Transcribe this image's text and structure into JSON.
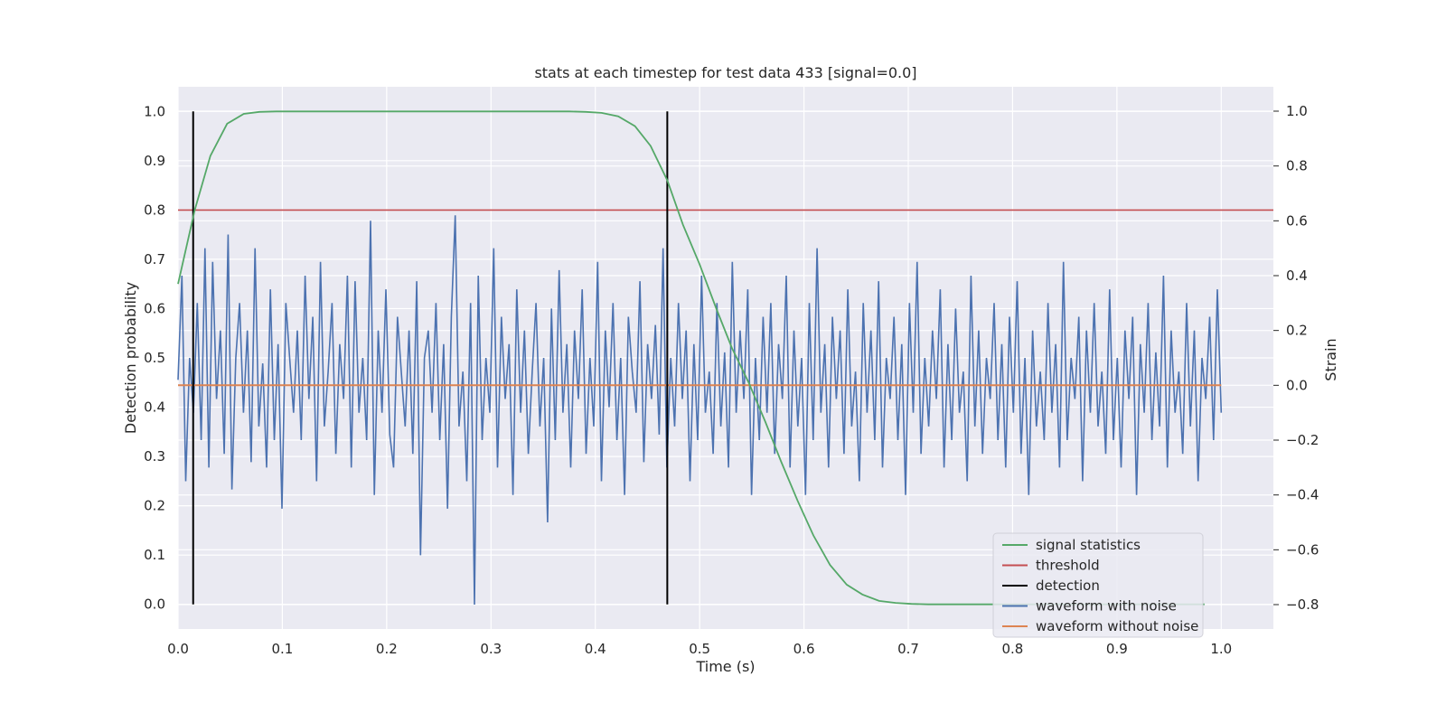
{
  "chart_data": {
    "type": "line",
    "title": "stats at each timestep for test data 433 [signal=0.0]",
    "xlabel": "Time (s)",
    "ylabel": "Detection probability",
    "y2label": "Strain",
    "xlim": [
      0.0,
      1.05
    ],
    "ylim": [
      -0.05,
      1.05
    ],
    "y2lim": [
      -0.889,
      1.089
    ],
    "x_ticks": [
      "0.0",
      "0.1",
      "0.2",
      "0.3",
      "0.4",
      "0.5",
      "0.6",
      "0.7",
      "0.8",
      "0.9",
      "1.0"
    ],
    "y_ticks": [
      "0.0",
      "0.1",
      "0.2",
      "0.3",
      "0.4",
      "0.5",
      "0.6",
      "0.7",
      "0.8",
      "0.9",
      "1.0"
    ],
    "y2_ticks": [
      "−0.8",
      "−0.6",
      "−0.4",
      "−0.2",
      "0.0",
      "0.2",
      "0.4",
      "0.6",
      "0.8",
      "1.0"
    ],
    "grid": true,
    "legend_position": "bottom-right",
    "series": [
      {
        "name": "signal statistics",
        "color": "#55a868",
        "axis": "left",
        "x": [
          0.0,
          0.016,
          0.031,
          0.047,
          0.063,
          0.078,
          0.094,
          0.109,
          0.125,
          0.141,
          0.156,
          0.172,
          0.188,
          0.203,
          0.219,
          0.234,
          0.25,
          0.266,
          0.281,
          0.297,
          0.313,
          0.328,
          0.344,
          0.359,
          0.375,
          0.391,
          0.406,
          0.422,
          0.438,
          0.453,
          0.469,
          0.484,
          0.5,
          0.516,
          0.531,
          0.547,
          0.563,
          0.578,
          0.594,
          0.609,
          0.625,
          0.641,
          0.656,
          0.672,
          0.688,
          0.703,
          0.719,
          0.734,
          0.75,
          0.766,
          0.781,
          0.797,
          0.813,
          0.828,
          0.844,
          0.859,
          0.875,
          0.891,
          0.906,
          0.922,
          0.938,
          0.953,
          0.969,
          0.984
        ],
        "values": [
          0.65,
          0.8,
          0.91,
          0.975,
          0.995,
          0.999,
          1.0,
          1.0,
          1.0,
          1.0,
          1.0,
          1.0,
          1.0,
          1.0,
          1.0,
          1.0,
          1.0,
          1.0,
          1.0,
          1.0,
          1.0,
          1.0,
          1.0,
          1.0,
          1.0,
          0.999,
          0.997,
          0.99,
          0.97,
          0.93,
          0.86,
          0.77,
          0.69,
          0.6,
          0.52,
          0.45,
          0.37,
          0.29,
          0.21,
          0.14,
          0.08,
          0.04,
          0.02,
          0.007,
          0.003,
          0.001,
          0.0,
          0.0,
          0.0,
          0.0,
          0.0,
          0.0,
          0.0,
          0.0,
          0.0,
          0.0,
          0.0,
          0.0,
          0.0,
          0.0,
          0.0,
          0.0,
          0.0,
          0.0
        ]
      },
      {
        "name": "threshold",
        "color": "#c44e52",
        "axis": "left",
        "x": [
          0.0,
          1.05
        ],
        "values": [
          0.8,
          0.8
        ]
      },
      {
        "name": "detection",
        "color": "#000000",
        "axis": "left",
        "type": "vlines",
        "x": [
          0.0145,
          0.469
        ],
        "ymin": 0.0,
        "ymax": 1.0
      },
      {
        "name": "waveform with noise",
        "color": "#4c72b0",
        "axis": "right",
        "x_start": 0.0,
        "x_end": 1.0,
        "values": [
          0.02,
          0.4,
          -0.35,
          0.1,
          -0.1,
          0.3,
          -0.2,
          0.5,
          -0.3,
          0.45,
          -0.05,
          0.2,
          -0.25,
          0.55,
          -0.38,
          0.1,
          0.3,
          -0.1,
          0.2,
          -0.28,
          0.5,
          -0.15,
          0.08,
          -0.3,
          0.35,
          -0.2,
          0.15,
          -0.45,
          0.3,
          0.1,
          -0.1,
          0.2,
          -0.2,
          0.4,
          -0.05,
          0.25,
          -0.35,
          0.45,
          -0.15,
          0.05,
          0.3,
          -0.25,
          0.15,
          -0.05,
          0.4,
          -0.3,
          0.38,
          -0.1,
          0.1,
          -0.2,
          0.6,
          -0.4,
          0.2,
          -0.1,
          0.35,
          -0.18,
          -0.3,
          0.25,
          0.05,
          -0.15,
          0.2,
          -0.25,
          0.38,
          -0.62,
          0.1,
          0.2,
          -0.1,
          0.3,
          -0.2,
          0.15,
          -0.45,
          0.25,
          0.62,
          -0.15,
          0.05,
          -0.35,
          0.3,
          -0.8,
          0.4,
          -0.2,
          0.1,
          -0.1,
          0.5,
          -0.3,
          0.25,
          -0.05,
          0.15,
          -0.4,
          0.35,
          -0.1,
          0.2,
          -0.25,
          0.05,
          0.3,
          -0.15,
          0.1,
          -0.5,
          0.28,
          -0.2,
          0.42,
          -0.1,
          0.15,
          -0.3,
          0.2,
          -0.05,
          0.35,
          -0.25,
          0.1,
          -0.15,
          0.45,
          -0.35,
          0.2,
          -0.08,
          0.3,
          -0.2,
          0.1,
          -0.4,
          0.25,
          0.05,
          -0.1,
          0.38,
          -0.28,
          0.15,
          -0.05,
          0.22,
          -0.18,
          0.5,
          -0.3,
          0.1,
          -0.15,
          0.3,
          -0.05,
          0.2,
          -0.35,
          0.15,
          -0.2,
          0.4,
          -0.1,
          0.05,
          -0.25,
          0.3,
          -0.15,
          0.12,
          -0.3,
          0.45,
          -0.1,
          0.2,
          -0.05,
          0.35,
          -0.4,
          0.1,
          -0.2,
          0.25,
          -0.1,
          0.3,
          -0.25,
          0.15,
          -0.05,
          0.4,
          -0.3,
          0.2,
          -0.15,
          0.1,
          -0.4,
          0.3,
          -0.2,
          0.5,
          -0.1,
          0.15,
          -0.3,
          0.25,
          -0.05,
          0.2,
          -0.25,
          0.35,
          -0.15,
          0.05,
          -0.35,
          0.3,
          -0.1,
          0.2,
          -0.2,
          0.38,
          -0.3,
          0.1,
          -0.05,
          0.25,
          -0.2,
          0.15,
          -0.4,
          0.3,
          -0.1,
          0.45,
          -0.25,
          0.1,
          -0.15,
          0.2,
          -0.05,
          0.35,
          -0.3,
          0.15,
          -0.2,
          0.28,
          -0.1,
          0.05,
          -0.35,
          0.4,
          -0.15,
          0.2,
          -0.25,
          0.1,
          -0.05,
          0.3,
          -0.2,
          0.15,
          -0.3,
          0.25,
          -0.1,
          0.38,
          -0.25,
          0.1,
          -0.4,
          0.2,
          -0.15,
          0.05,
          -0.2,
          0.3,
          -0.1,
          0.15,
          -0.3,
          0.45,
          -0.2,
          0.1,
          -0.05,
          0.25,
          -0.35,
          0.2,
          -0.1,
          0.3,
          -0.15,
          0.05,
          -0.25,
          0.35,
          -0.2,
          0.1,
          -0.3,
          0.2,
          -0.05,
          0.25,
          -0.4,
          0.15,
          -0.1,
          0.3,
          -0.2,
          0.12,
          -0.15,
          0.4,
          -0.3,
          0.2,
          -0.1,
          0.05,
          -0.25,
          0.3,
          -0.15,
          0.2,
          -0.35,
          0.1,
          -0.05,
          0.25,
          -0.2,
          0.35,
          -0.1
        ]
      },
      {
        "name": "waveform without noise",
        "color": "#dd8452",
        "axis": "right",
        "x": [
          0.0,
          1.0
        ],
        "values": [
          0.0,
          0.0
        ]
      }
    ]
  }
}
